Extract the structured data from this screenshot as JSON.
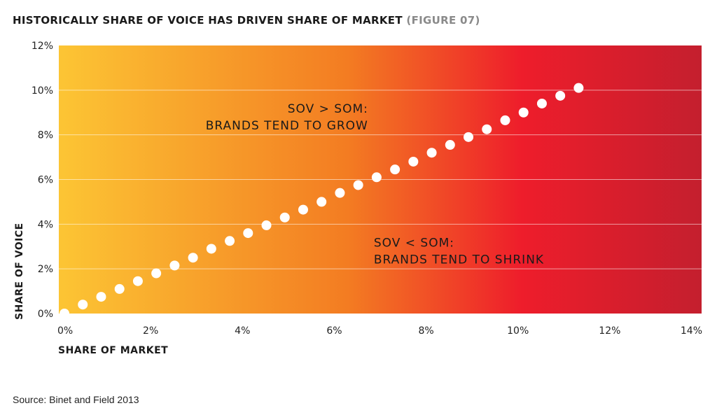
{
  "title": "HISTORICALLY SHARE OF VOICE HAS DRIVEN SHARE OF MARKET",
  "figure_label": "(FIGURE 07)",
  "source": "Source: Binet and Field 2013",
  "colors": {
    "gradient_start": "#fcc534",
    "gradient_mid": "#f37c22",
    "gradient_red": "#ee1d2b",
    "gradient_end": "#c41f2e",
    "points": "#ffffff"
  },
  "chart_data": {
    "type": "scatter",
    "title": "HISTORICALLY SHARE OF VOICE HAS DRIVEN SHARE OF MARKET",
    "xlabel": "SHARE OF MARKET",
    "ylabel": "SHARE OF VOICE",
    "xlim": [
      0,
      14
    ],
    "ylim": [
      0,
      12
    ],
    "x_ticks": [
      "0%",
      "2%",
      "4%",
      "6%",
      "8%",
      "10%",
      "12%",
      "14%"
    ],
    "y_ticks": [
      "0%",
      "2%",
      "4%",
      "6%",
      "8%",
      "10%",
      "12%"
    ],
    "grid": "horizontal",
    "annotations": [
      {
        "lines": [
          "SOV > SOM:",
          "BRANDS TEND TO GROW"
        ],
        "x": 6.8,
        "y": 9.0,
        "align": "end"
      },
      {
        "lines": [
          "SOV < SOM:",
          "BRANDS TEND TO SHRINK"
        ],
        "x": 6.8,
        "y": 3.0,
        "align": "start"
      }
    ],
    "x": [
      0.0,
      0.4,
      0.8,
      1.2,
      1.6,
      2.0,
      2.4,
      2.8,
      3.2,
      3.6,
      4.0,
      4.4,
      4.8,
      5.2,
      5.6,
      6.0,
      6.4,
      6.8,
      7.2,
      7.6,
      8.0,
      8.4,
      8.8,
      9.2,
      9.6,
      10.0,
      10.4,
      10.8,
      11.2
    ],
    "y": [
      0.0,
      0.4,
      0.75,
      1.1,
      1.45,
      1.8,
      2.15,
      2.5,
      2.9,
      3.25,
      3.6,
      3.95,
      4.3,
      4.65,
      5.0,
      5.4,
      5.75,
      6.1,
      6.45,
      6.8,
      7.2,
      7.55,
      7.9,
      8.25,
      8.65,
      9.0,
      9.4,
      9.75,
      10.1
    ]
  }
}
